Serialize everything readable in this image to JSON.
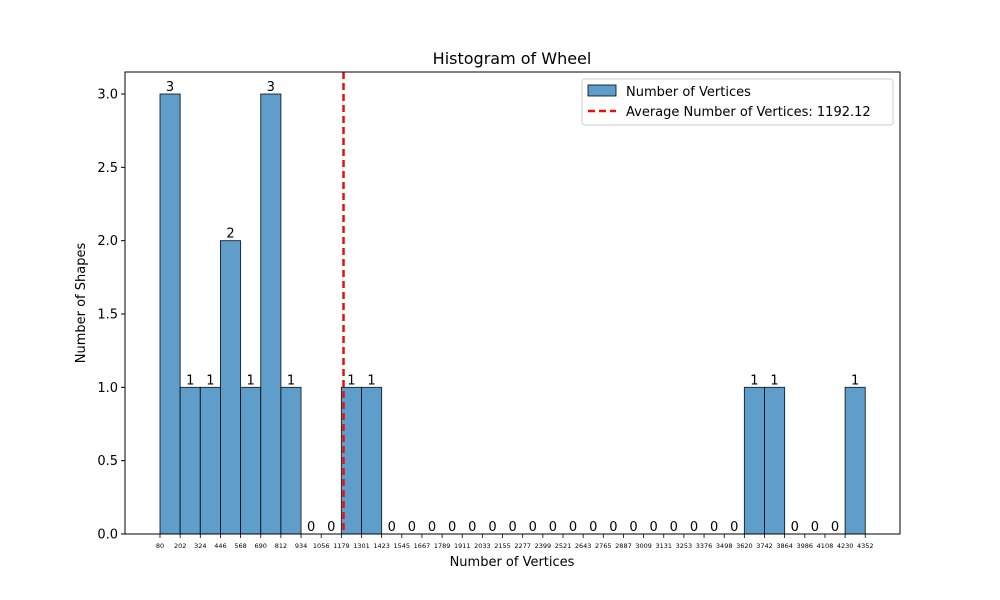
{
  "chart_data": {
    "type": "bar",
    "title": "Histogram of Wheel",
    "xlabel": "Number of Vertices",
    "ylabel": "Number of Shapes",
    "ylim": [
      0,
      3.15
    ],
    "yticks": [
      "0.0",
      "0.5",
      "1.0",
      "1.5",
      "2.0",
      "2.5",
      "3.0"
    ],
    "bin_edges": [
      "80",
      "202",
      "324",
      "446",
      "568",
      "690",
      "812",
      "934",
      "1056",
      "1179",
      "1301",
      "1423",
      "1545",
      "1667",
      "1789",
      "1911",
      "2033",
      "2155",
      "2277",
      "2399",
      "2521",
      "2643",
      "2765",
      "2887",
      "3009",
      "3131",
      "3253",
      "3376",
      "3498",
      "3620",
      "3742",
      "3864",
      "3986",
      "4108",
      "4230",
      "4352"
    ],
    "values": [
      3,
      1,
      1,
      2,
      1,
      3,
      1,
      0,
      0,
      1,
      1,
      0,
      0,
      0,
      0,
      0,
      0,
      0,
      0,
      0,
      0,
      0,
      0,
      0,
      0,
      0,
      0,
      0,
      0,
      1,
      1,
      0,
      0,
      0,
      1
    ],
    "bar_labels": [
      "3",
      "1",
      "1",
      "2",
      "1",
      "3",
      "1",
      "0",
      "0",
      "1",
      "1",
      "0",
      "0",
      "0",
      "0",
      "0",
      "0",
      "0",
      "0",
      "0",
      "0",
      "0",
      "0",
      "0",
      "0",
      "0",
      "0",
      "0",
      "0",
      "1",
      "1",
      "0",
      "0",
      "0",
      "1"
    ],
    "average": 1192.12,
    "bar_color": "#5f9ecb",
    "average_line_color": "#e3120b",
    "legend": {
      "placement": "top-right",
      "bars_label": "Number of Vertices",
      "line_label": "Average Number of Vertices: 1192.12"
    },
    "grid": false
  }
}
